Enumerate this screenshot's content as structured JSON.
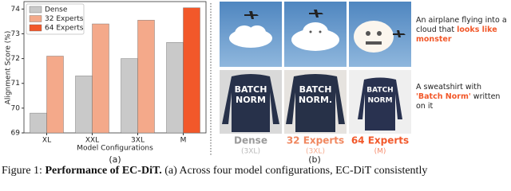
{
  "chart_data": {
    "type": "bar",
    "ylabel": "Alignment Score (%)",
    "xlabel": "Model Configurations",
    "categories": [
      "XL",
      "XXL",
      "3XL",
      "M"
    ],
    "series": [
      {
        "name": "Dense",
        "color": "#c9c9c9",
        "values": [
          69.8,
          71.3,
          72.0,
          72.65
        ]
      },
      {
        "name": "32 Experts",
        "color": "#f4a98a",
        "values": [
          72.1,
          73.4,
          73.55,
          null
        ]
      },
      {
        "name": "64 Experts",
        "color": "#f2582a",
        "values": [
          null,
          null,
          null,
          74.05
        ]
      }
    ],
    "ylim": [
      69,
      74.3
    ],
    "yticks": [
      69,
      70,
      71,
      72,
      73,
      74
    ],
    "legend": "upper-left",
    "grid": false,
    "sublabel": "(a)"
  },
  "panel": {
    "sublabel": "(b)",
    "prompts": [
      {
        "text": "An airplane flying into a cloud that ",
        "highlight": "looks like monster"
      },
      {
        "text": "A sweatshirt with ",
        "highlight": "'Batch Norm'",
        "rest": " written on it"
      }
    ],
    "sweater_texts": [
      [
        "BATCH",
        "NORM"
      ],
      [
        "BATCH",
        "NORM."
      ],
      [
        "BATCH",
        "NORM"
      ]
    ],
    "columns": [
      {
        "name": "Dense",
        "config": "(3XL)"
      },
      {
        "name": "32 Experts",
        "config": "(3XL)"
      },
      {
        "name": "64 Experts",
        "config": "(M)"
      }
    ]
  },
  "caption": {
    "label": "Figure 1:",
    "bold": "Performance of EC-DiT.",
    "text": "(a) Across four model configurations, EC-DiT consistently"
  }
}
